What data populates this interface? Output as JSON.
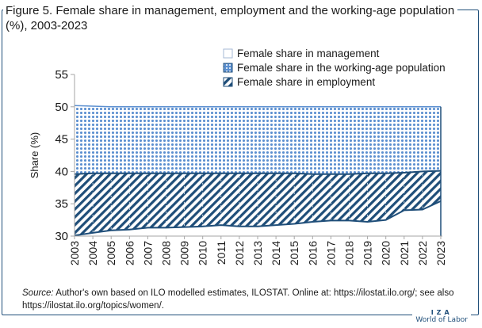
{
  "title": "Figure 5. Female share in management, employment and the working-age population (%), 2003-2023",
  "source": {
    "label": "Source:",
    "text": "Author's own based on ILO modelled estimates, ILOSTAT. Online at: https://ilostat.ilo.org/; see also https://ilostat.ilo.org/topics/women/."
  },
  "footer": {
    "brand": "IZA",
    "sub": "World of Labor"
  },
  "chart_data": {
    "type": "area",
    "x": [
      "2003",
      "2004",
      "2005",
      "2006",
      "2007",
      "2008",
      "2009",
      "2010",
      "2011",
      "2012",
      "2013",
      "2014",
      "2015",
      "2016",
      "2017",
      "2018",
      "2019",
      "2020",
      "2021",
      "2022",
      "2023"
    ],
    "ylabel": "Share (%)",
    "xlabel": "",
    "ylim": [
      30,
      55
    ],
    "yticks": [
      30,
      35,
      40,
      45,
      50,
      55
    ],
    "legend_position": "top-right",
    "series": [
      {
        "name": "Female share in management",
        "fill": "none",
        "values": [
          30.1,
          30.5,
          30.9,
          31.0,
          31.3,
          31.3,
          31.4,
          31.5,
          31.7,
          31.5,
          31.5,
          31.7,
          31.9,
          32.2,
          32.4,
          32.4,
          32.2,
          32.5,
          34.0,
          34.1,
          35.4
        ]
      },
      {
        "name": "Female share in the working-age population",
        "fill": "dots",
        "values": [
          50.2,
          50.1,
          50.0,
          50.0,
          50.0,
          50.0,
          50.0,
          50.0,
          50.0,
          50.0,
          50.0,
          50.0,
          50.0,
          50.0,
          50.0,
          50.0,
          50.0,
          50.0,
          50.0,
          50.0,
          50.0
        ]
      },
      {
        "name": "Female share in employment",
        "fill": "hatch",
        "values": [
          39.6,
          39.7,
          39.7,
          39.7,
          39.7,
          39.7,
          39.7,
          39.7,
          39.7,
          39.7,
          39.7,
          39.7,
          39.7,
          39.6,
          39.6,
          39.6,
          39.7,
          39.7,
          39.8,
          40.0,
          40.1
        ]
      }
    ],
    "colors": {
      "primary": "#1f4e79",
      "dots": "#5b8fd0",
      "axis": "#a6a6a6"
    }
  }
}
